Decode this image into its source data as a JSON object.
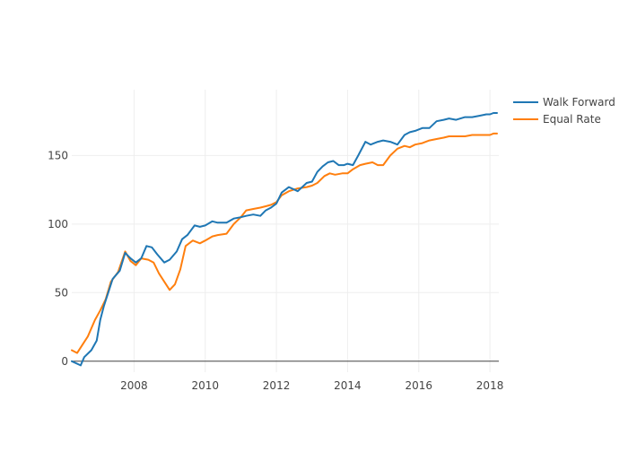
{
  "chart_data": {
    "type": "line",
    "title": "",
    "xlabel": "",
    "ylabel": "",
    "xlim": [
      2006.25,
      2018.25
    ],
    "ylim": [
      -8,
      198
    ],
    "x_ticks": [
      2008,
      2010,
      2012,
      2014,
      2016,
      2018
    ],
    "x_tick_labels": [
      "2008",
      "2010",
      "2012",
      "2014",
      "2016",
      "2018"
    ],
    "y_ticks": [
      0,
      50,
      100,
      150
    ],
    "y_tick_labels": [
      "0",
      "50",
      "100",
      "150"
    ],
    "grid": true,
    "legend_position": "top-right",
    "colors": {
      "Walk Forward": "#1f77b4",
      "Equal Rate": "#ff7f0e",
      "zero_line": "#444444",
      "grid": "#eeeeee"
    },
    "series": [
      {
        "name": "Walk Forward",
        "color": "#1f77b4",
        "x": [
          2006.25,
          2006.5,
          2006.6,
          2006.8,
          2006.95,
          2007.05,
          2007.15,
          2007.3,
          2007.4,
          2007.6,
          2007.75,
          2007.9,
          2008.05,
          2008.2,
          2008.35,
          2008.5,
          2008.65,
          2008.85,
          2009.0,
          2009.2,
          2009.35,
          2009.5,
          2009.7,
          2009.85,
          2010.0,
          2010.2,
          2010.35,
          2010.6,
          2010.8,
          2011.0,
          2011.15,
          2011.35,
          2011.55,
          2011.7,
          2011.85,
          2012.0,
          2012.15,
          2012.35,
          2012.6,
          2012.85,
          2013.0,
          2013.15,
          2013.3,
          2013.45,
          2013.6,
          2013.75,
          2013.9,
          2014.0,
          2014.15,
          2014.3,
          2014.5,
          2014.65,
          2014.85,
          2015.0,
          2015.2,
          2015.4,
          2015.6,
          2015.75,
          2015.9,
          2016.1,
          2016.3,
          2016.5,
          2016.7,
          2016.85,
          2017.05,
          2017.3,
          2017.5,
          2017.7,
          2017.9,
          2018.0,
          2018.1,
          2018.2
        ],
        "values": [
          0,
          -3,
          3,
          8,
          15,
          30,
          40,
          52,
          60,
          66,
          79,
          75,
          72,
          75,
          84,
          83,
          78,
          72,
          74,
          80,
          89,
          92,
          99,
          98,
          99,
          102,
          101,
          101,
          104,
          105,
          106,
          107,
          106,
          110,
          112,
          115,
          123,
          127,
          124,
          130,
          131,
          138,
          142,
          145,
          146,
          143,
          143,
          144,
          143,
          150,
          160,
          158,
          160,
          161,
          160,
          158,
          165,
          167,
          168,
          170,
          170,
          175,
          176,
          177,
          176,
          178,
          178,
          179,
          180,
          180,
          181,
          181
        ]
      },
      {
        "name": "Equal Rate",
        "color": "#ff7f0e",
        "x": [
          2006.25,
          2006.4,
          2006.55,
          2006.7,
          2006.9,
          2007.05,
          2007.2,
          2007.35,
          2007.55,
          2007.75,
          2007.9,
          2008.05,
          2008.2,
          2008.4,
          2008.55,
          2008.7,
          2008.85,
          2009.0,
          2009.15,
          2009.3,
          2009.45,
          2009.65,
          2009.85,
          2010.0,
          2010.2,
          2010.35,
          2010.6,
          2010.8,
          2011.0,
          2011.15,
          2011.35,
          2011.55,
          2011.7,
          2011.85,
          2012.0,
          2012.15,
          2012.35,
          2012.6,
          2012.85,
          2013.0,
          2013.15,
          2013.35,
          2013.5,
          2013.65,
          2013.85,
          2014.0,
          2014.15,
          2014.35,
          2014.5,
          2014.7,
          2014.85,
          2015.0,
          2015.2,
          2015.4,
          2015.6,
          2015.75,
          2015.9,
          2016.1,
          2016.3,
          2016.5,
          2016.7,
          2016.85,
          2017.05,
          2017.3,
          2017.5,
          2017.7,
          2017.9,
          2018.0,
          2018.1,
          2018.2
        ],
        "values": [
          8,
          6,
          12,
          18,
          30,
          37,
          45,
          58,
          65,
          80,
          73,
          70,
          75,
          74,
          72,
          64,
          58,
          52,
          56,
          67,
          84,
          88,
          86,
          88,
          91,
          92,
          93,
          100,
          105,
          110,
          111,
          112,
          113,
          114,
          116,
          121,
          124,
          126,
          127,
          128,
          130,
          135,
          137,
          136,
          137,
          137,
          140,
          143,
          144,
          145,
          143,
          143,
          150,
          155,
          157,
          156,
          158,
          159,
          161,
          162,
          163,
          164,
          164,
          164,
          165,
          165,
          165,
          165,
          166,
          166
        ]
      }
    ]
  }
}
